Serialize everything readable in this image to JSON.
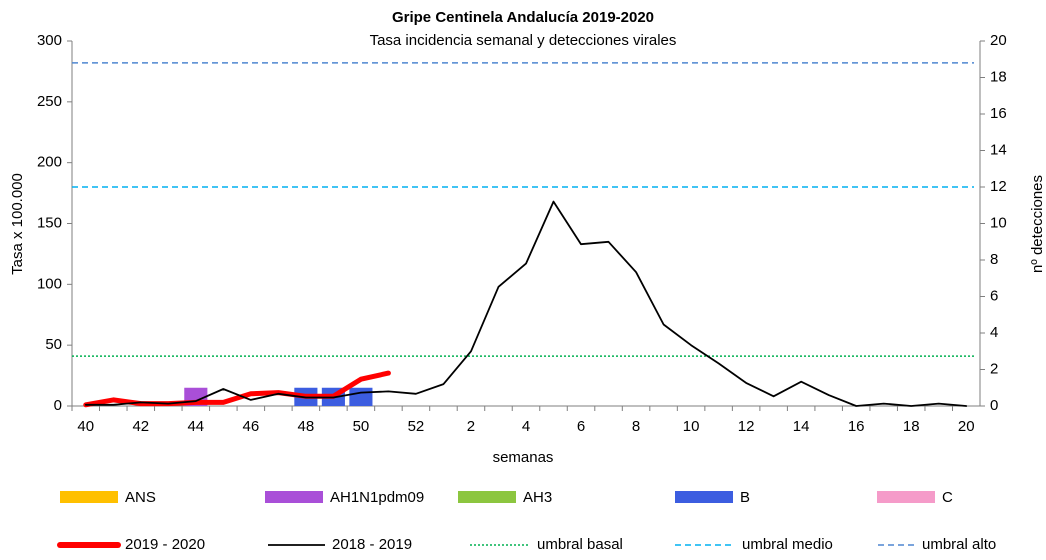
{
  "chart_data": {
    "type": "combo",
    "title": "Gripe Centinela Andalucía 2019-2020",
    "subtitle": "Tasa incidencia semanal y detecciones virales",
    "xlabel": "semanas",
    "ylabel": "Tasa x 100.000",
    "y2label": "nº detecciones",
    "categories": [
      "40",
      null,
      "42",
      null,
      "44",
      null,
      "46",
      null,
      "48",
      null,
      "50",
      null,
      "52",
      null,
      "2",
      null,
      "4",
      null,
      "6",
      null,
      "8",
      null,
      "10",
      null,
      "12",
      null,
      "14",
      null,
      "16",
      null,
      "18",
      null,
      "20"
    ],
    "ylim": [
      0,
      300
    ],
    "yticks": [
      0,
      50,
      100,
      150,
      200,
      250,
      300
    ],
    "y2lim": [
      0,
      20
    ],
    "y2ticks": [
      0,
      2,
      4,
      6,
      8,
      10,
      12,
      14,
      16,
      18,
      20
    ],
    "bar_series": [
      {
        "name": "ANS",
        "color": "#ffc000",
        "axis": "y2",
        "values": [
          0,
          0,
          0,
          0,
          0,
          0,
          0,
          0,
          0,
          0,
          0,
          0,
          null,
          null,
          null,
          null,
          null,
          null,
          null,
          null,
          null,
          null,
          null,
          null,
          null,
          null,
          null,
          null,
          null,
          null,
          null,
          null,
          null
        ]
      },
      {
        "name": "AH1N1pdm09",
        "color": "#a94fd8",
        "axis": "y2",
        "values": [
          0,
          0,
          0,
          0,
          1,
          0,
          0,
          0,
          0,
          0,
          0,
          0,
          null,
          null,
          null,
          null,
          null,
          null,
          null,
          null,
          null,
          null,
          null,
          null,
          null,
          null,
          null,
          null,
          null,
          null,
          null,
          null,
          null
        ]
      },
      {
        "name": "AH3",
        "color": "#8cc63f",
        "axis": "y2",
        "values": [
          0,
          0,
          0,
          0,
          0,
          0,
          0,
          0,
          0,
          0,
          0,
          0,
          null,
          null,
          null,
          null,
          null,
          null,
          null,
          null,
          null,
          null,
          null,
          null,
          null,
          null,
          null,
          null,
          null,
          null,
          null,
          null,
          null
        ]
      },
      {
        "name": "B",
        "color": "#3c5de0",
        "axis": "y2",
        "values": [
          0,
          0,
          0,
          0,
          0,
          0,
          0,
          0,
          1,
          1,
          1,
          0,
          null,
          null,
          null,
          null,
          null,
          null,
          null,
          null,
          null,
          null,
          null,
          null,
          null,
          null,
          null,
          null,
          null,
          null,
          null,
          null,
          null
        ]
      },
      {
        "name": "C",
        "color": "#f59bc9",
        "axis": "y2",
        "values": [
          0,
          0,
          0,
          0,
          0,
          0,
          0,
          0,
          0,
          0,
          0,
          0,
          null,
          null,
          null,
          null,
          null,
          null,
          null,
          null,
          null,
          null,
          null,
          null,
          null,
          null,
          null,
          null,
          null,
          null,
          null,
          null,
          null
        ]
      }
    ],
    "series": [
      {
        "name": "2019 - 2020",
        "color": "#ff0000",
        "style": "thick",
        "values": [
          1,
          5,
          2,
          2,
          3,
          3,
          10,
          11,
          8,
          8,
          22,
          27,
          null,
          null,
          null,
          null,
          null,
          null,
          null,
          null,
          null,
          null,
          null,
          null,
          null,
          null,
          null,
          null,
          null,
          null,
          null,
          null,
          null
        ]
      },
      {
        "name": "2018 - 2019",
        "color": "#000000",
        "style": "thin",
        "values": [
          1,
          1,
          3,
          2,
          4,
          14,
          5,
          10,
          7,
          7,
          11,
          12,
          10,
          18,
          45,
          98,
          117,
          168,
          133,
          135,
          110,
          67,
          50,
          35,
          19,
          8,
          20,
          9,
          0,
          2,
          0,
          2,
          0
        ]
      }
    ],
    "thresholds": [
      {
        "name": "umbral basal",
        "color": "#00b050",
        "style": "dotted",
        "value": 41
      },
      {
        "name": "umbral medio",
        "color": "#00b0f0",
        "style": "dashed",
        "value": 180
      },
      {
        "name": "umbral alto",
        "color": "#4f86d0",
        "style": "dashed",
        "value": 282
      }
    ]
  }
}
